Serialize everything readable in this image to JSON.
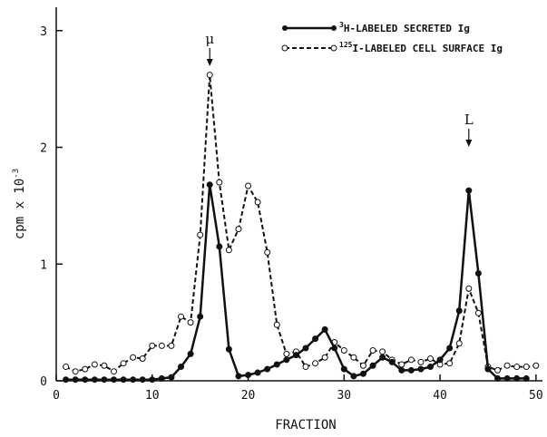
{
  "chart_data": {
    "type": "line",
    "title": "",
    "xlabel": "FRACTION",
    "ylabel": "cpm x 10",
    "ylabel_exponent": "-3",
    "xlim": [
      0,
      52
    ],
    "ylim": [
      0,
      3.2
    ],
    "xticks": [
      0,
      10,
      20,
      30,
      40,
      50
    ],
    "yticks": [
      0,
      1,
      2,
      3
    ],
    "grid": false,
    "legend_position": "top-right",
    "annotations": [
      {
        "label": "μ",
        "x": 16
      },
      {
        "label": "L",
        "x": 43
      }
    ],
    "series": [
      {
        "name_superscript": "3",
        "name": "H-LABELED SECRETED Ig",
        "style": "solid",
        "marker": "filled-circle",
        "x": [
          1,
          2,
          3,
          4,
          5,
          6,
          7,
          8,
          9,
          10,
          11,
          12,
          13,
          14,
          15,
          16,
          17,
          18,
          19,
          20,
          21,
          22,
          23,
          24,
          25,
          26,
          27,
          28,
          29,
          30,
          31,
          32,
          33,
          34,
          35,
          36,
          37,
          38,
          39,
          40,
          41,
          42,
          43,
          44,
          45,
          46,
          47,
          48,
          49
        ],
        "y": [
          0.01,
          0.01,
          0.01,
          0.01,
          0.01,
          0.01,
          0.01,
          0.01,
          0.01,
          0.01,
          0.02,
          0.03,
          0.12,
          0.23,
          0.55,
          1.68,
          1.15,
          0.27,
          0.04,
          0.05,
          0.07,
          0.1,
          0.14,
          0.18,
          0.22,
          0.28,
          0.36,
          0.44,
          0.28,
          0.1,
          0.04,
          0.06,
          0.13,
          0.2,
          0.16,
          0.09,
          0.09,
          0.1,
          0.12,
          0.18,
          0.28,
          0.6,
          1.63,
          0.92,
          0.1,
          0.02,
          0.02,
          0.02,
          0.02
        ]
      },
      {
        "name_superscript": "125",
        "name": "I-LABELED CELL SURFACE Ig",
        "style": "dashed",
        "marker": "open-circle",
        "x": [
          1,
          2,
          3,
          4,
          5,
          6,
          7,
          8,
          9,
          10,
          11,
          12,
          13,
          14,
          15,
          16,
          17,
          18,
          19,
          20,
          21,
          22,
          23,
          24,
          25,
          26,
          27,
          28,
          29,
          30,
          31,
          32,
          33,
          34,
          35,
          36,
          37,
          38,
          39,
          40,
          41,
          42,
          43,
          44,
          45,
          46,
          47,
          48,
          49,
          50
        ],
        "y": [
          0.12,
          0.08,
          0.1,
          0.14,
          0.13,
          0.08,
          0.15,
          0.2,
          0.19,
          0.3,
          0.3,
          0.3,
          0.55,
          0.5,
          1.25,
          2.62,
          1.7,
          1.12,
          1.3,
          1.67,
          1.53,
          1.1,
          0.48,
          0.23,
          0.25,
          0.12,
          0.15,
          0.2,
          0.33,
          0.26,
          0.2,
          0.13,
          0.26,
          0.25,
          0.18,
          0.14,
          0.18,
          0.16,
          0.19,
          0.14,
          0.15,
          0.32,
          0.79,
          0.58,
          0.12,
          0.09,
          0.13,
          0.12,
          0.12,
          0.13
        ]
      }
    ]
  }
}
